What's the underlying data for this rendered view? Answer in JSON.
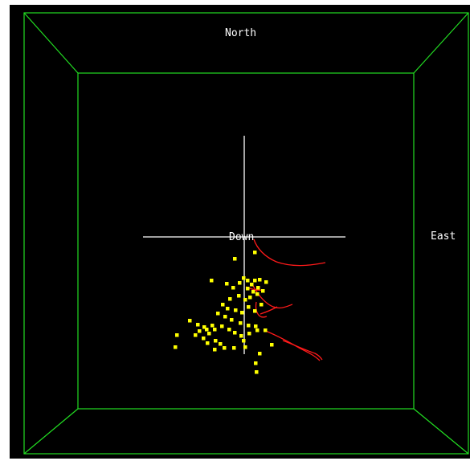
{
  "scene": {
    "labels": {
      "north": "North",
      "east": "East",
      "down": "Down"
    },
    "colors": {
      "background": "#000000",
      "frame": "#22dd22",
      "axes": "#ffffff",
      "events": "#ffff00",
      "traces": "#ff1a1a",
      "labels": "#ffffff"
    }
  }
}
